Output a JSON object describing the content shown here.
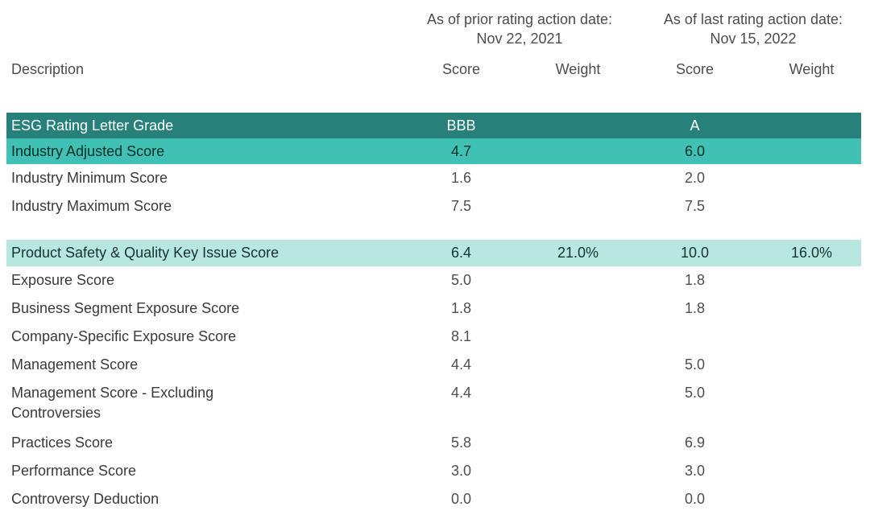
{
  "header": {
    "groups": [
      {
        "title": "As of prior rating action date:",
        "date": "Nov 22, 2021"
      },
      {
        "title": "As of last rating action date:",
        "date": "Nov 15, 2022"
      }
    ],
    "columns": [
      "Description",
      "Score",
      "Weight",
      "Score",
      "Weight"
    ]
  },
  "colors": {
    "dark_teal": "#27807a",
    "medium_teal": "#41c1b3",
    "light_teal": "#b8e7e0"
  },
  "table": {
    "rows": [
      {
        "label": "ESG Rating Letter Grade",
        "score_prior": "BBB",
        "weight_prior": "",
        "score_last": "A",
        "weight_last": "",
        "style": "dark",
        "gap_before": false
      },
      {
        "label": "Industry Adjusted Score",
        "score_prior": "4.7",
        "weight_prior": "",
        "score_last": "6.0",
        "weight_last": "",
        "style": "medium",
        "gap_before": false
      },
      {
        "label": "Industry Minimum Score",
        "score_prior": "1.6",
        "weight_prior": "",
        "score_last": "2.0",
        "weight_last": "",
        "style": "plain",
        "gap_before": false
      },
      {
        "label": "Industry Maximum Score",
        "score_prior": "7.5",
        "weight_prior": "",
        "score_last": "7.5",
        "weight_last": "",
        "style": "plain",
        "gap_before": false
      },
      {
        "label": "Product Safety & Quality Key Issue Score",
        "score_prior": "6.4",
        "weight_prior": "21.0%",
        "score_last": "10.0",
        "weight_last": "16.0%",
        "style": "light",
        "gap_before": true
      },
      {
        "label": "Exposure Score",
        "score_prior": "5.0",
        "weight_prior": "",
        "score_last": "1.8",
        "weight_last": "",
        "style": "plain",
        "gap_before": false
      },
      {
        "label": "Business Segment Exposure Score",
        "score_prior": "1.8",
        "weight_prior": "",
        "score_last": "1.8",
        "weight_last": "",
        "style": "plain",
        "gap_before": false
      },
      {
        "label": "Company-Specific Exposure Score",
        "score_prior": "8.1",
        "weight_prior": "",
        "score_last": "",
        "weight_last": "",
        "style": "plain",
        "gap_before": false
      },
      {
        "label": "Management Score",
        "score_prior": "4.4",
        "weight_prior": "",
        "score_last": "5.0",
        "weight_last": "",
        "style": "plain",
        "gap_before": false
      },
      {
        "label": "Management Score - Excluding Controversies",
        "score_prior": "4.4",
        "weight_prior": "",
        "score_last": "5.0",
        "weight_last": "",
        "style": "plain",
        "tall": true,
        "gap_before": false
      },
      {
        "label": "Practices Score",
        "score_prior": "5.8",
        "weight_prior": "",
        "score_last": "6.9",
        "weight_last": "",
        "style": "plain",
        "gap_before": false
      },
      {
        "label": "Performance Score",
        "score_prior": "3.0",
        "weight_prior": "",
        "score_last": "3.0",
        "weight_last": "",
        "style": "plain",
        "gap_before": false
      },
      {
        "label": "Controversy Deduction",
        "score_prior": "0.0",
        "weight_prior": "",
        "score_last": "0.0",
        "weight_last": "",
        "style": "plain",
        "gap_before": false
      }
    ]
  }
}
